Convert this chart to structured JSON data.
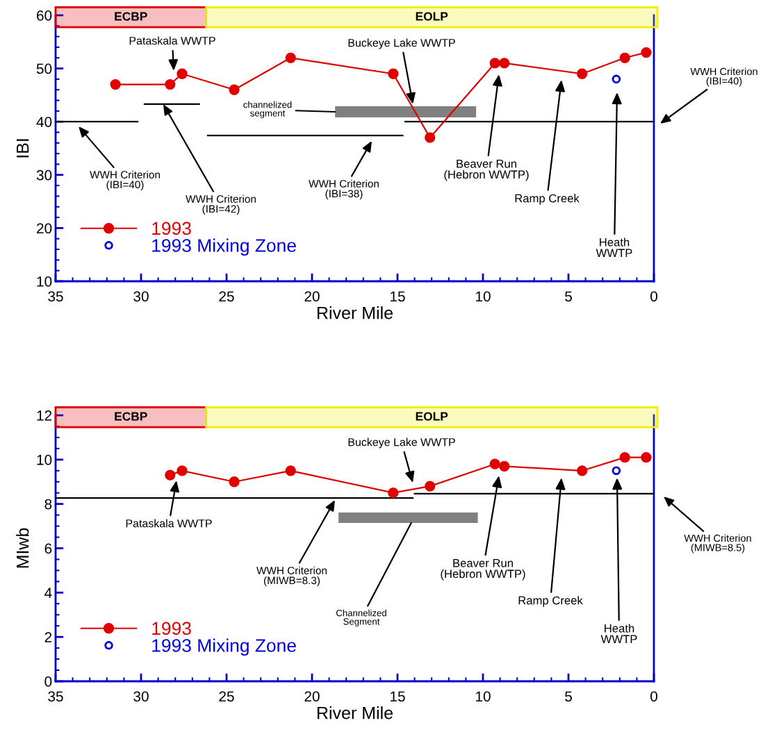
{
  "chart_data": [
    {
      "type": "line",
      "xlabel": "River Mile",
      "ylabel": "IBI",
      "xlim": [
        35,
        0
      ],
      "xticks": [
        35,
        30,
        25,
        20,
        15,
        10,
        5,
        0
      ],
      "ylim": [
        10,
        60
      ],
      "yticks": [
        10,
        20,
        30,
        40,
        50,
        60
      ],
      "grid": false,
      "legend": "bottom left",
      "series": [
        {
          "name": "1993",
          "type": "line",
          "color": "#e00000",
          "marker": "circle",
          "x": [
            31.5,
            28.3,
            27.6,
            24.55,
            21.25,
            15.25,
            13.1,
            9.3,
            8.75,
            4.2,
            1.7,
            0.45
          ],
          "values": [
            47,
            47,
            49,
            46,
            52,
            49,
            37,
            51,
            51,
            49,
            52,
            53
          ]
        },
        {
          "name": "1993 Mixing Zone",
          "type": "scatter",
          "color": "#0000dd",
          "marker": "circle",
          "x": [
            2.2
          ],
          "values": [
            48
          ]
        },
        {
          "type": "line",
          "color": "#000000",
          "x": [
            35,
            30.2
          ],
          "values": [
            40,
            40
          ]
        },
        {
          "type": "line",
          "color": "#000000",
          "x": [
            29.8,
            26.6
          ],
          "values": [
            43.3,
            43.3
          ]
        },
        {
          "type": "line",
          "color": "#000000",
          "x": [
            26.1,
            14.7
          ],
          "values": [
            37.4,
            37.4
          ]
        },
        {
          "type": "line",
          "color": "#000000",
          "x": [
            14.55,
            0
          ],
          "values": [
            40,
            40
          ]
        },
        {
          "type": "area",
          "color": "#808080",
          "x": [
            18.65,
            10.4
          ],
          "values": [
            null,
            null
          ],
          "lower": [
            40.8,
            40.8
          ],
          "upper": [
            42.9,
            42.9
          ]
        }
      ],
      "bands": [
        {
          "axis": "x",
          "from": 35,
          "to": 26.2,
          "label": "ECBP",
          "color": "#e00000"
        },
        {
          "axis": "x",
          "from": 26.2,
          "to": -0.2,
          "label": "EOLP",
          "color": "#f0f000"
        }
      ],
      "annotations": [
        "Pataskala WWTP",
        {
          "text": "Buckeye Lake WWTP",
          "x": 14.1,
          "y": 43.3
        },
        "channelized\nsegment",
        "WWH Criterion\n(IBI=40)",
        {
          "text": "WWH Criterion\n(IBI=42)",
          "x": 28.7,
          "y": 43.3
        },
        "WWH Criterion\n(IBI=38)",
        "Beaver Run\n(Hebron WWTP)",
        "Ramp Creek",
        "Heath\nWWTP",
        "WWH Criterion\n(IBI=40)"
      ]
    },
    {
      "type": "line",
      "xlabel": "River Mile",
      "ylabel": "MIwb",
      "xlim": [
        35,
        0
      ],
      "xticks": [
        35,
        30,
        25,
        20,
        15,
        10,
        5,
        0
      ],
      "ylim": [
        0,
        12
      ],
      "yticks": [
        0,
        2,
        4,
        6,
        8,
        10,
        12
      ],
      "grid": false,
      "legend": "bottom left",
      "series": [
        {
          "name": "1993",
          "type": "line",
          "color": "#e00000",
          "marker": "circle",
          "x": [
            28.3,
            27.6,
            24.55,
            21.25,
            15.25,
            13.1,
            9.3,
            8.75,
            4.2,
            1.7,
            0.45
          ],
          "values": [
            9.3,
            9.5,
            9.0,
            9.5,
            8.5,
            8.8,
            9.8,
            9.7,
            9.5,
            10.1,
            10.1
          ]
        },
        {
          "name": "1993 Mixing Zone",
          "type": "scatter",
          "color": "#0000dd",
          "marker": "circle",
          "x": [
            2.2
          ],
          "values": [
            9.5
          ]
        },
        {
          "type": "line",
          "color": "#000000",
          "x": [
            35,
            14.1
          ],
          "values": [
            8.27,
            8.27
          ]
        },
        {
          "type": "line",
          "color": "#000000",
          "x": [
            14.0,
            0
          ],
          "values": [
            8.46,
            8.46
          ]
        },
        {
          "type": "area",
          "color": "#808080",
          "x": [
            18.45,
            10.3
          ],
          "values": [
            null,
            null
          ],
          "lower": [
            7.14,
            7.14
          ],
          "upper": [
            7.61,
            7.61
          ]
        }
      ],
      "bands": [
        {
          "axis": "x",
          "from": 35,
          "to": 26.2,
          "label": "ECBP",
          "color": "#e00000"
        },
        {
          "axis": "x",
          "from": 26.2,
          "to": -0.2,
          "label": "EOLP",
          "color": "#f0f000"
        }
      ],
      "annotations": [
        "Pataskala WWTP",
        "Buckeye Lake WWTP",
        "WWH Criterion\n(MIWB=8.3)",
        {
          "text": "Channelized\nSegment",
          "x": 14.2,
          "y": 7.14
        },
        "Beaver Run\n(Hebron WWTP)",
        "Ramp Creek",
        "Heath\nWWTP",
        "WWH Criterion\n(MIWB=8.5)"
      ]
    }
  ]
}
